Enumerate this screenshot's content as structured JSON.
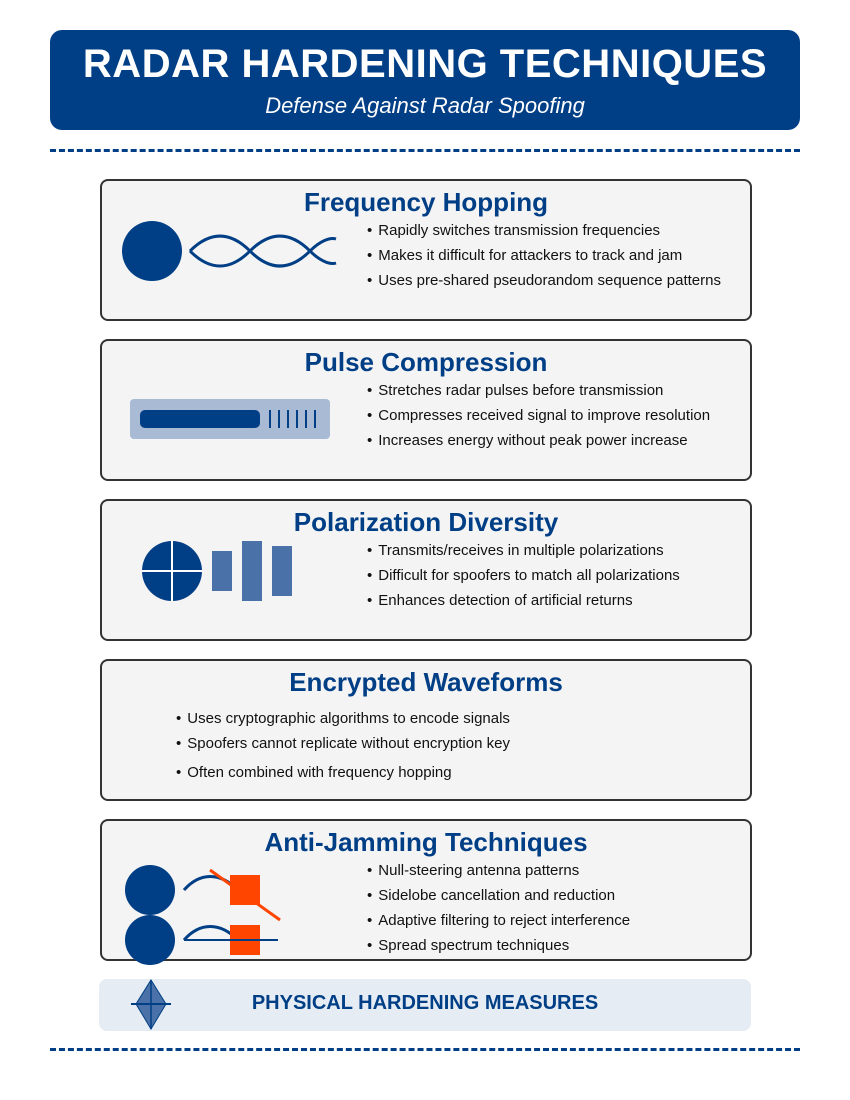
{
  "header": {
    "title": "RADAR HARDENING TECHNIQUES",
    "subtitle": "Defense Against Radar Spoofing"
  },
  "sections": [
    {
      "title": "Frequency Hopping",
      "icon": "frequency-hopping-icon",
      "bullets": [
        "Rapidly switches transmission frequencies",
        "Makes it difficult for attackers to track and jam",
        "Uses pre-shared pseudorandom sequence patterns"
      ]
    },
    {
      "title": "Pulse Compression",
      "icon": "pulse-compression-icon",
      "bullets": [
        "Stretches radar pulses before transmission",
        "Compresses received signal to improve resolution",
        "Increases energy without peak power increase"
      ]
    },
    {
      "title": "Polarization Diversity",
      "icon": "polarization-icon",
      "bullets": [
        "Transmits/receives in multiple polarizations",
        "Difficult for spoofers to match all polarizations",
        "Enhances detection of artificial returns"
      ]
    },
    {
      "title": "Encrypted Waveforms",
      "bullets": [
        "Uses cryptographic algorithms to encode signals",
        "Spoofers cannot replicate without encryption key",
        "Often combined with frequency hopping"
      ]
    },
    {
      "title": "Anti-Jamming Techniques",
      "icon": "anti-jamming-icon",
      "bullets": [
        "Null-steering antenna patterns",
        "Sidelobe cancellation and reduction",
        "Adaptive filtering to reject interference",
        "Spread spectrum techniques"
      ]
    }
  ],
  "footer": {
    "label": "PHYSICAL HARDENING MEASURES",
    "icon": "diamond-icon"
  },
  "colors": {
    "primary": "#003e85",
    "secondary": "#4a72a8",
    "light": "#a9bbd4",
    "accent": "#ff4500"
  }
}
